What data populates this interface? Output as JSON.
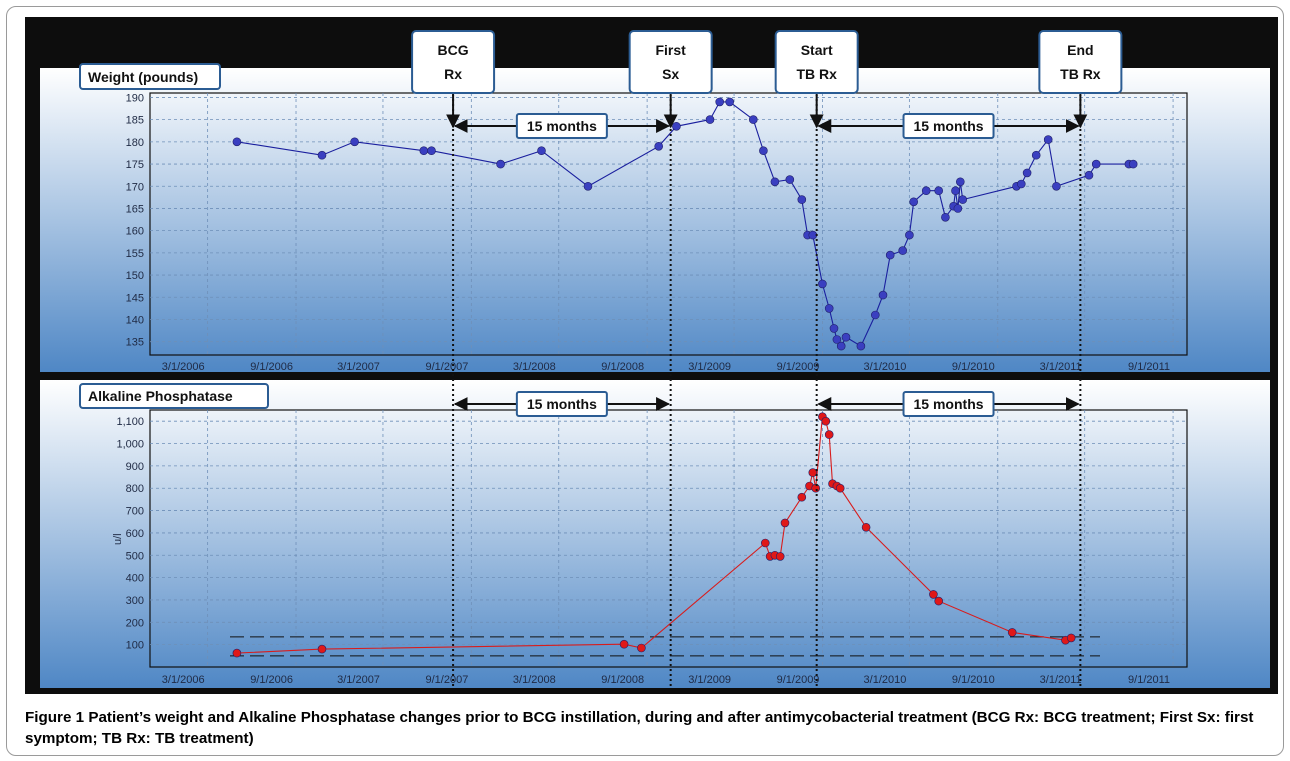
{
  "caption": {
    "figure_label": "Figure 1",
    "text": "Patient’s weight and Alkaline Phosphatase changes prior to BCG instillation, during and after antimycobacterial treatment (BCG Rx: BCG treatment; First Sx: first symptom; TB Rx: TB treatment)"
  },
  "event_labels": [
    {
      "id": "bcg",
      "line1": "BCG",
      "line2": "Rx",
      "date": "2007-07-25"
    },
    {
      "id": "first-sx",
      "line1": "First",
      "line2": "Sx",
      "date": "2008-10-20"
    },
    {
      "id": "start-tb",
      "line1": "Start",
      "line2": "TB Rx",
      "date": "2009-08-20"
    },
    {
      "id": "end-tb",
      "line1": "End",
      "line2": "TB Rx",
      "date": "2011-02-20"
    }
  ],
  "interval_labels": [
    {
      "text": "15 months",
      "from": "2007-07-25",
      "to": "2008-10-20"
    },
    {
      "text": "15 months",
      "from": "2009-08-20",
      "to": "2011-02-20"
    }
  ],
  "colors": {
    "weight_series": "#1a1f9e",
    "weight_marker": "#3a3fc0",
    "alp_series": "#d81c1c",
    "alp_marker": "#e01818",
    "plot_top": "#ffffff",
    "plot_bottom": "#4f87c5",
    "event_line": "#111111"
  },
  "chart_data": [
    {
      "type": "line",
      "title": "Weight (pounds)",
      "ylabel": "",
      "xlabel": "",
      "x_ticks": [
        "3/1/2006",
        "9/1/2006",
        "3/1/2007",
        "9/1/2007",
        "3/1/2008",
        "9/1/2008",
        "3/1/2009",
        "9/1/2009",
        "3/1/2010",
        "9/1/2010",
        "3/1/2011",
        "9/1/2011"
      ],
      "y_ticks": [
        "135",
        "140",
        "145",
        "150",
        "155",
        "160",
        "165",
        "170",
        "175",
        "180",
        "185",
        "190"
      ],
      "ylim": [
        132,
        191
      ],
      "xlim": [
        "2005-11-01",
        "2011-09-30"
      ],
      "grid": true,
      "series": [
        {
          "x": [
            "2006-05-01",
            "2006-10-25",
            "2007-01-01",
            "2007-05-25",
            "2007-06-10",
            "2007-11-01",
            "2008-01-25",
            "2008-05-01",
            "2008-09-25",
            "2008-11-01",
            "2009-01-10",
            "2009-01-30",
            "2009-02-20",
            "2009-04-10",
            "2009-05-01",
            "2009-05-25",
            "2009-06-25",
            "2009-07-20",
            "2009-08-01",
            "2009-08-12",
            "2009-09-01",
            "2009-09-15",
            "2009-09-25",
            "2009-10-01",
            "2009-10-10",
            "2009-10-20",
            "2009-11-20",
            "2009-12-20",
            "2010-01-05",
            "2010-01-20",
            "2010-02-15",
            "2010-03-01",
            "2010-03-10",
            "2010-04-05",
            "2010-05-01",
            "2010-05-15",
            "2010-06-01",
            "2010-06-05",
            "2010-06-10",
            "2010-06-15",
            "2010-06-20",
            "2010-10-10",
            "2010-10-20",
            "2010-11-01",
            "2010-11-20",
            "2010-12-15",
            "2011-01-01",
            "2011-03-10",
            "2011-03-25",
            "2011-06-01",
            "2011-06-10"
          ],
          "values": [
            180,
            177,
            180,
            178,
            178,
            175,
            178,
            170,
            179,
            183.5,
            185,
            189,
            189,
            185,
            178,
            171,
            171.5,
            167,
            159,
            159,
            148,
            142.5,
            138,
            135.5,
            134,
            136,
            134,
            141,
            145.5,
            154.5,
            155.5,
            159,
            166.5,
            169,
            169,
            163,
            165.5,
            169,
            165,
            171,
            167,
            170,
            170.5,
            173,
            177,
            180.5,
            170,
            172.5,
            175,
            175,
            175
          ]
        }
      ]
    },
    {
      "type": "line",
      "title": "Alkaline Phosphatase",
      "ylabel": "u/l",
      "xlabel": "",
      "x_ticks": [
        "3/1/2006",
        "9/1/2006",
        "3/1/2007",
        "9/1/2007",
        "3/1/2008",
        "9/1/2008",
        "3/1/2009",
        "9/1/2009",
        "3/1/2010",
        "9/1/2010",
        "3/1/2011",
        "9/1/2011"
      ],
      "y_ticks": [
        "100",
        "200",
        "300",
        "400",
        "500",
        "600",
        "700",
        "800",
        "900",
        "1,000",
        "1,100"
      ],
      "ylim": [
        0,
        1150
      ],
      "xlim": [
        "2005-11-01",
        "2011-09-30"
      ],
      "grid": true,
      "reference_lines": [
        135,
        50
      ],
      "series": [
        {
          "x": [
            "2006-05-01",
            "2006-10-25",
            "2008-07-15",
            "2008-08-20",
            "2009-05-05",
            "2009-05-15",
            "2009-05-25",
            "2009-06-05",
            "2009-06-15",
            "2009-07-20",
            "2009-08-05",
            "2009-08-12",
            "2009-08-18",
            "2009-09-01",
            "2009-09-08",
            "2009-09-15",
            "2009-09-22",
            "2009-10-01",
            "2009-10-08",
            "2009-12-01",
            "2010-04-20",
            "2010-05-01",
            "2010-10-01",
            "2011-01-20",
            "2011-02-01"
          ],
          "values": [
            62,
            80,
            102,
            85,
            555,
            495,
            500,
            495,
            645,
            760,
            810,
            870,
            800,
            1120,
            1100,
            1040,
            820,
            810,
            800,
            625,
            325,
            295,
            155,
            120,
            130
          ]
        }
      ]
    }
  ]
}
